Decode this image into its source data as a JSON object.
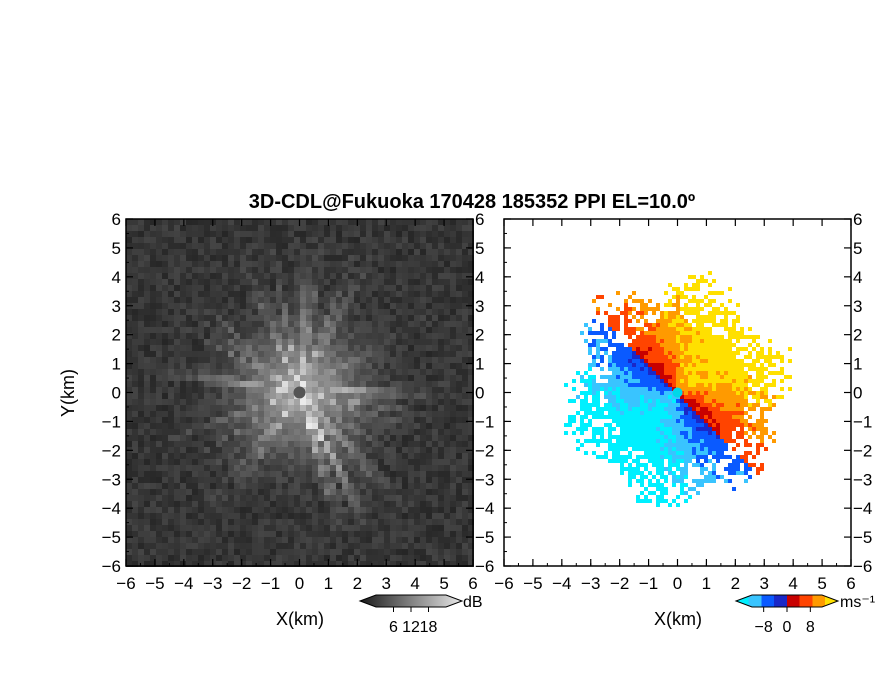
{
  "chart_data": [
    {
      "type": "heatmap",
      "panel": "left",
      "field": "reflectivity",
      "title": "3D-CDL@Fukuoka 170428 185352 PPI EL=10.0º",
      "xlabel": "X(km)",
      "ylabel": "Y(km)",
      "xlim": [
        -6,
        6
      ],
      "ylim": [
        -6,
        6
      ],
      "x_ticks": [
        -6,
        -5,
        -4,
        -3,
        -2,
        -1,
        0,
        1,
        2,
        3,
        4,
        5,
        6
      ],
      "y_ticks": [
        -6,
        -5,
        -4,
        -3,
        -2,
        -1,
        0,
        1,
        2,
        3,
        4,
        5,
        6
      ],
      "colorbar": {
        "unit": "dB",
        "ticks": [
          6,
          12,
          18
        ],
        "range": [
          0,
          24
        ],
        "colormap": "grayscale",
        "colors": [
          "#1a1a1a",
          "#e8e8e8"
        ]
      },
      "pattern": "radial streaks, bright near center (~18 dB), background dark (~3-6 dB), blind zone radius ~0.2 km at origin"
    },
    {
      "type": "heatmap",
      "panel": "right",
      "field": "doppler_velocity",
      "xlabel": "X(km)",
      "xlim": [
        -6,
        6
      ],
      "ylim": [
        -6,
        6
      ],
      "x_ticks": [
        -6,
        -5,
        -4,
        -3,
        -2,
        -1,
        0,
        1,
        2,
        3,
        4,
        5,
        6
      ],
      "y_ticks": [
        -6,
        -5,
        -4,
        -3,
        -2,
        -1,
        0,
        1,
        2,
        3,
        4,
        5,
        6
      ],
      "colorbar": {
        "unit": "ms⁻¹",
        "ticks": [
          -8,
          0,
          8
        ],
        "range": [
          -12,
          12
        ],
        "colormap": "cyan-blue-red-yellow",
        "colors": [
          "#00f0ff",
          "#39c4ff",
          "#0a5aff",
          "#1a28c8",
          "#c80000",
          "#ff4400",
          "#ff9a00",
          "#ffe000"
        ]
      },
      "pattern": "dipole: negative (blue/cyan) to the southwest, positive (red/yellow) to the northeast; data extent ~4.5 km"
    }
  ]
}
